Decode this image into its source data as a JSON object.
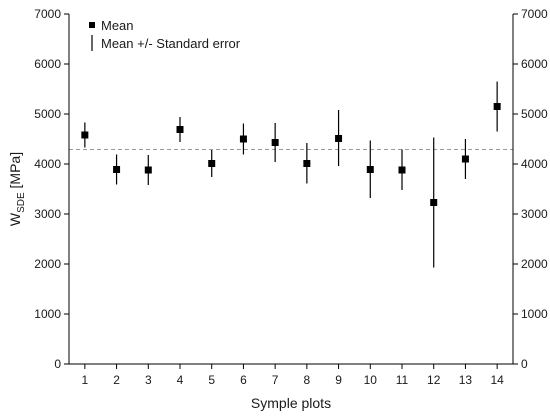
{
  "chart_data": {
    "type": "scatter",
    "title": "",
    "xlabel": "Symple plots",
    "ylabel_main": "W",
    "ylabel_sub": "SDE",
    "ylabel_unit": " [MPa]",
    "x": [
      1,
      2,
      3,
      4,
      5,
      6,
      7,
      8,
      9,
      10,
      11,
      12,
      13,
      14
    ],
    "x_tick_labels": [
      "1",
      "2",
      "3",
      "4",
      "5",
      "6",
      "7",
      "8",
      "9",
      "10",
      "11",
      "12",
      "13",
      "14"
    ],
    "xlim": [
      0.5,
      14.5
    ],
    "ylim": [
      0,
      7000
    ],
    "y_ticks": [
      0,
      1000,
      2000,
      3000,
      4000,
      5000,
      6000,
      7000
    ],
    "y_tick_labels": [
      "0",
      "1000",
      "2000",
      "3000",
      "4000",
      "5000",
      "6000",
      "7000"
    ],
    "right_axis_ticks": true,
    "grid": false,
    "legend_position": "top-left",
    "series": [
      {
        "name": "Mean",
        "marker": "square",
        "values": [
          4580,
          3890,
          3880,
          4690,
          4010,
          4500,
          4430,
          4010,
          4510,
          3890,
          3880,
          3230,
          4100,
          5150
        ],
        "error_low": [
          4330,
          3590,
          3580,
          4440,
          3740,
          4190,
          4040,
          3610,
          3960,
          3320,
          3480,
          1930,
          3700,
          4650
        ],
        "error_high": [
          4830,
          4190,
          4180,
          4940,
          4280,
          4810,
          4820,
          4420,
          5080,
          4470,
          4290,
          4530,
          4500,
          5650
        ],
        "error_legend": "Mean +/- Standard error"
      }
    ],
    "reference_line": {
      "y": 4290,
      "style": "dashed",
      "color": "#9a9a9a"
    },
    "colors": {
      "marker": "#000000",
      "axis": "#000000"
    }
  }
}
